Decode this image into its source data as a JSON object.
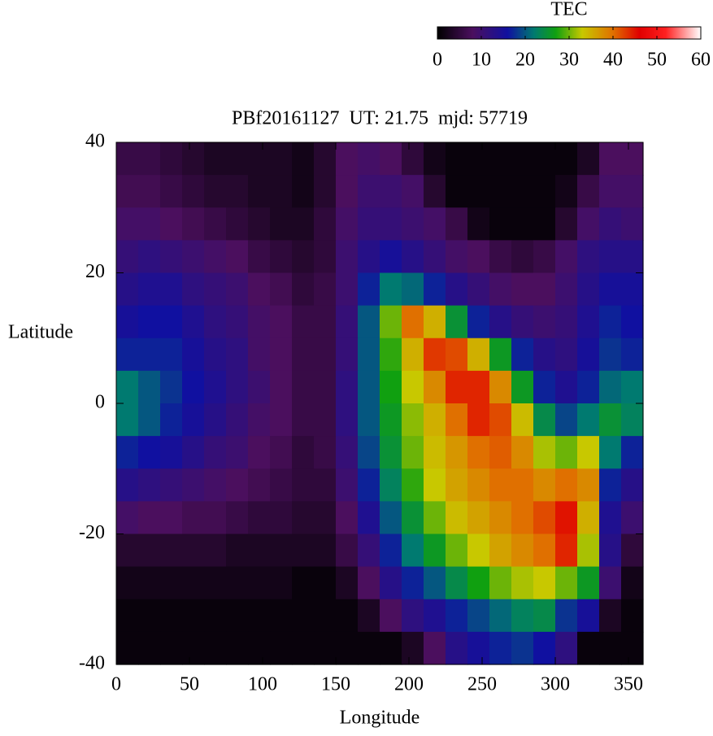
{
  "chart_data": {
    "type": "heatmap",
    "title": "PBf20161127  UT: 21.75  mjd: 57719",
    "xlabel": "Longitude",
    "ylabel": "Latitude",
    "xlim": [
      0,
      360
    ],
    "ylim": [
      -40,
      40
    ],
    "xticks": [
      0,
      50,
      100,
      150,
      200,
      250,
      300,
      350
    ],
    "yticks": [
      -40,
      -20,
      0,
      20,
      40
    ],
    "x": [
      7.5,
      22.5,
      37.5,
      52.5,
      67.5,
      82.5,
      97.5,
      112.5,
      127.5,
      142.5,
      157.5,
      172.5,
      187.5,
      202.5,
      217.5,
      232.5,
      247.5,
      262.5,
      277.5,
      292.5,
      307.5,
      322.5,
      337.5,
      352.5
    ],
    "y": [
      37.5,
      32.5,
      27.5,
      22.5,
      17.5,
      12.5,
      7.5,
      2.5,
      -2.5,
      -7.5,
      -12.5,
      -17.5,
      -22.5,
      -27.5,
      -32.5,
      -37.5
    ],
    "z": [
      [
        6,
        6,
        5,
        4,
        3,
        3,
        3,
        3,
        2,
        4,
        8,
        9,
        8,
        5,
        2,
        1,
        1,
        1,
        1,
        1,
        1,
        3,
        8,
        8
      ],
      [
        7,
        7,
        6,
        5,
        4,
        4,
        3,
        3,
        2,
        4,
        8,
        10,
        10,
        9,
        4,
        1,
        1,
        1,
        1,
        1,
        2,
        6,
        9,
        9
      ],
      [
        9,
        9,
        8,
        7,
        6,
        5,
        4,
        3,
        3,
        5,
        9,
        11,
        11,
        10,
        9,
        6,
        2,
        1,
        1,
        1,
        4,
        9,
        11,
        10
      ],
      [
        11,
        12,
        11,
        10,
        9,
        8,
        6,
        5,
        4,
        5,
        10,
        13,
        15,
        13,
        11,
        9,
        8,
        6,
        5,
        6,
        9,
        12,
        13,
        13
      ],
      [
        13,
        14,
        14,
        12,
        11,
        10,
        8,
        7,
        5,
        6,
        10,
        17,
        22,
        21,
        17,
        13,
        11,
        9,
        8,
        8,
        10,
        13,
        15,
        15
      ],
      [
        15,
        16,
        16,
        14,
        12,
        11,
        9,
        8,
        6,
        6,
        11,
        20,
        30,
        40,
        35,
        25,
        17,
        13,
        11,
        10,
        11,
        14,
        17,
        16
      ],
      [
        17,
        17,
        17,
        15,
        13,
        12,
        9,
        8,
        6,
        6,
        11,
        20,
        28,
        35,
        43,
        42,
        35,
        26,
        17,
        13,
        12,
        15,
        18,
        17
      ],
      [
        22,
        20,
        18,
        16,
        14,
        12,
        10,
        8,
        6,
        6,
        12,
        20,
        27,
        33,
        38,
        44,
        44,
        38,
        26,
        17,
        14,
        17,
        21,
        22
      ],
      [
        22,
        20,
        17,
        15,
        13,
        11,
        9,
        8,
        6,
        6,
        12,
        20,
        26,
        31,
        35,
        40,
        44,
        42,
        34,
        24,
        19,
        22,
        25,
        23
      ],
      [
        17,
        16,
        15,
        13,
        11,
        10,
        8,
        7,
        5,
        6,
        11,
        19,
        25,
        30,
        34,
        37,
        40,
        41,
        38,
        32,
        30,
        33,
        22,
        17
      ],
      [
        13,
        12,
        11,
        10,
        9,
        8,
        7,
        6,
        5,
        5,
        10,
        17,
        23,
        28,
        33,
        36,
        38,
        40,
        40,
        38,
        40,
        38,
        17,
        13
      ],
      [
        9,
        8,
        8,
        7,
        7,
        6,
        5,
        5,
        4,
        4,
        8,
        14,
        20,
        25,
        30,
        34,
        36,
        38,
        40,
        42,
        45,
        35,
        14,
        10
      ],
      [
        4,
        4,
        4,
        4,
        4,
        3,
        3,
        3,
        3,
        3,
        6,
        11,
        17,
        22,
        26,
        30,
        33,
        36,
        38,
        40,
        44,
        32,
        13,
        5
      ],
      [
        2,
        2,
        2,
        2,
        2,
        2,
        2,
        2,
        1,
        1,
        3,
        8,
        13,
        17,
        20,
        24,
        27,
        30,
        32,
        33,
        30,
        26,
        10,
        2
      ],
      [
        1,
        1,
        1,
        1,
        1,
        1,
        1,
        1,
        1,
        1,
        1,
        3,
        8,
        12,
        14,
        17,
        19,
        21,
        23,
        24,
        18,
        15,
        3,
        1
      ],
      [
        1,
        1,
        1,
        1,
        1,
        1,
        1,
        1,
        1,
        1,
        1,
        1,
        1,
        3,
        8,
        13,
        15,
        17,
        18,
        16,
        12,
        1,
        1,
        1
      ]
    ],
    "colorscale": [
      [
        0,
        "#000000"
      ],
      [
        8,
        "#4b0f5e"
      ],
      [
        16,
        "#1010a0"
      ],
      [
        22,
        "#007a70"
      ],
      [
        27,
        "#10a010"
      ],
      [
        33,
        "#c8c800"
      ],
      [
        40,
        "#e07000"
      ],
      [
        46,
        "#e00000"
      ],
      [
        52,
        "#ff2020"
      ],
      [
        60,
        "#ffffff"
      ]
    ],
    "colorbar": {
      "title": "TEC",
      "lim": [
        0,
        60
      ],
      "ticks": [
        0,
        10,
        20,
        30,
        40,
        50,
        60
      ]
    }
  }
}
